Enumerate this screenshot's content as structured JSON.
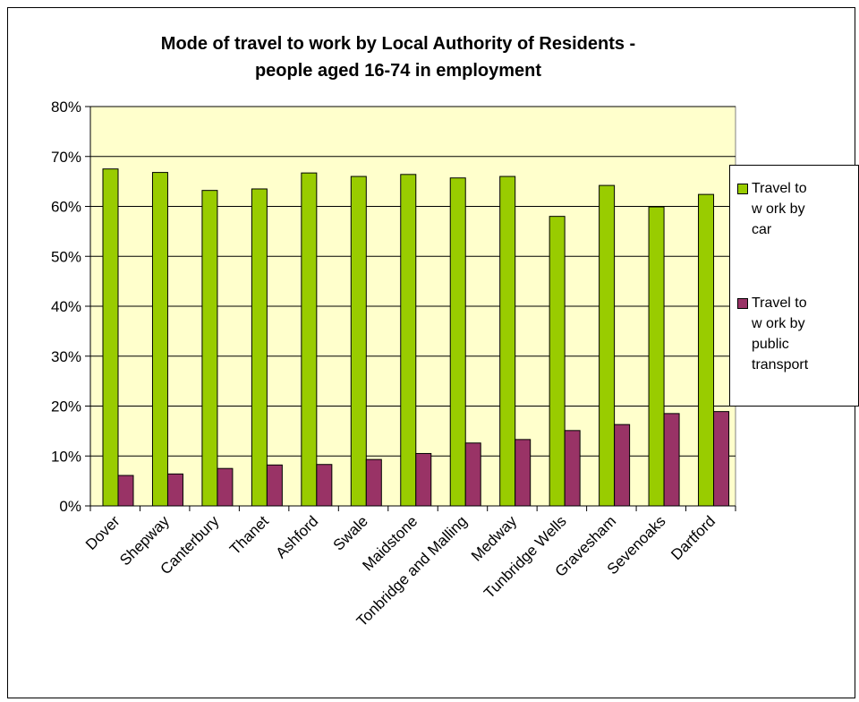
{
  "chart_data": {
    "type": "bar",
    "title": [
      "Mode of travel to work by Local Authority of Residents -",
      "people aged 16-74 in employment"
    ],
    "categories": [
      "Dover",
      "Shepway",
      "Canterbury",
      "Thanet",
      "Ashford",
      "Swale",
      "Maidstone",
      "Tonbridge and Malling",
      "Medway",
      "Tunbridge Wells",
      "Gravesham",
      "Sevenoaks",
      "Dartford"
    ],
    "series": [
      {
        "name": "Travel to work by car",
        "legend_lines": "Travel to\nw ork by\ncar",
        "color": "#99cc00",
        "values": [
          67.5,
          66.8,
          63.2,
          63.5,
          66.7,
          66.0,
          66.4,
          65.7,
          66.0,
          58.0,
          64.2,
          59.9,
          62.4
        ]
      },
      {
        "name": "Travel to work by public transport",
        "legend_lines": "Travel to\nw ork by\npublic\ntransport",
        "color": "#993366",
        "values": [
          6.1,
          6.4,
          7.5,
          8.2,
          8.3,
          9.3,
          10.5,
          12.6,
          13.3,
          15.1,
          16.3,
          18.5,
          18.9
        ]
      }
    ],
    "ylim": [
      0,
      80
    ],
    "yticks": [
      "0%",
      "10%",
      "20%",
      "30%",
      "40%",
      "50%",
      "60%",
      "70%",
      "80%"
    ],
    "plot_background": "#ffffcc",
    "grid": true,
    "legend_position": "right"
  }
}
